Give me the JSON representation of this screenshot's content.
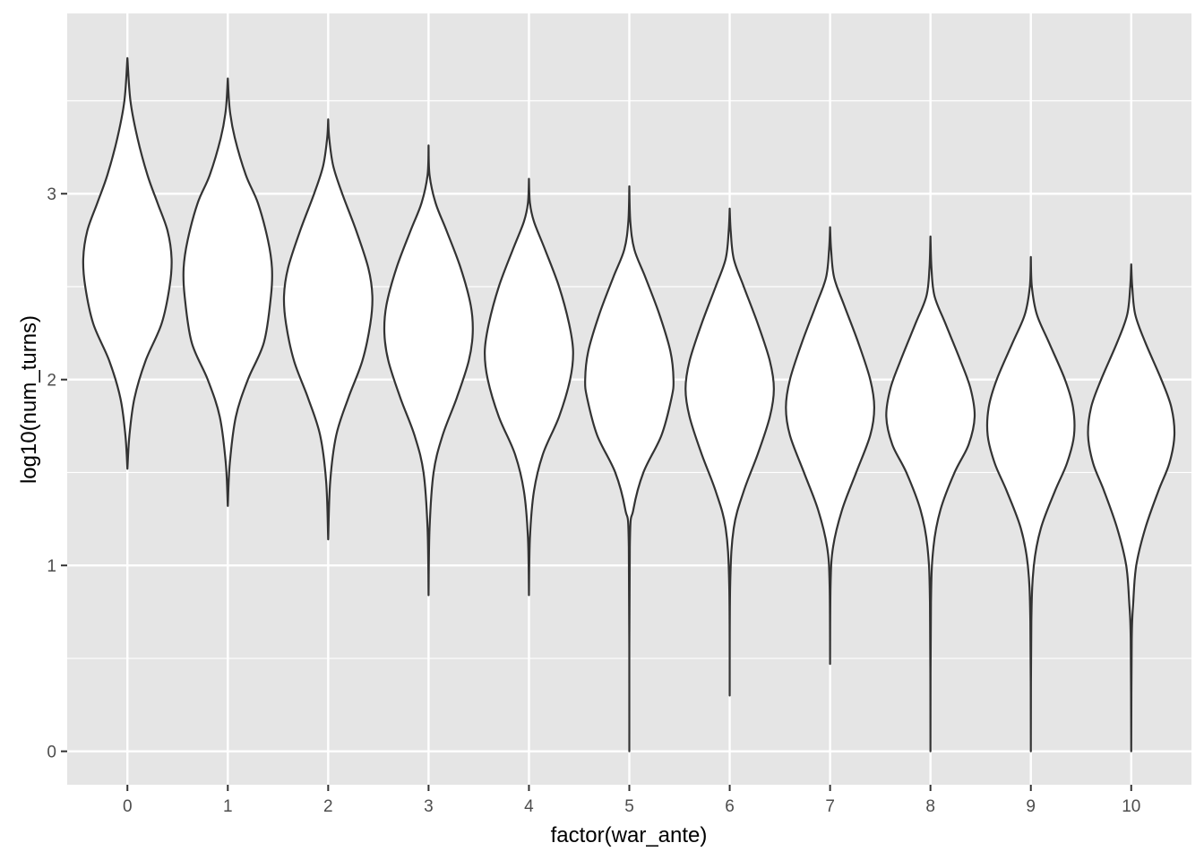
{
  "chart_data": {
    "type": "violin",
    "xlabel": "factor(war_ante)",
    "ylabel": "log10(num_turns)",
    "categories": [
      "0",
      "1",
      "2",
      "3",
      "4",
      "5",
      "6",
      "7",
      "8",
      "9",
      "10"
    ],
    "ylim": [
      -0.18,
      3.97
    ],
    "yticks": [
      0,
      1,
      2,
      3
    ],
    "grid": true,
    "colors": {
      "panel": "#e5e5e5",
      "grid": "#ffffff",
      "outline": "#333333",
      "fill": "#ffffff"
    },
    "violins": [
      {
        "category": "0",
        "min": 1.52,
        "max": 3.73,
        "profile": [
          [
            1.52,
            0.0
          ],
          [
            1.7,
            0.02
          ],
          [
            1.9,
            0.07
          ],
          [
            2.1,
            0.18
          ],
          [
            2.3,
            0.34
          ],
          [
            2.5,
            0.42
          ],
          [
            2.65,
            0.44
          ],
          [
            2.8,
            0.4
          ],
          [
            2.95,
            0.3
          ],
          [
            3.1,
            0.2
          ],
          [
            3.3,
            0.1
          ],
          [
            3.5,
            0.03
          ],
          [
            3.73,
            0.0
          ]
        ]
      },
      {
        "category": "1",
        "min": 1.32,
        "max": 3.62,
        "profile": [
          [
            1.32,
            0.0
          ],
          [
            1.55,
            0.02
          ],
          [
            1.8,
            0.08
          ],
          [
            2.0,
            0.2
          ],
          [
            2.2,
            0.36
          ],
          [
            2.45,
            0.43
          ],
          [
            2.6,
            0.44
          ],
          [
            2.75,
            0.4
          ],
          [
            2.95,
            0.3
          ],
          [
            3.1,
            0.18
          ],
          [
            3.3,
            0.07
          ],
          [
            3.45,
            0.02
          ],
          [
            3.62,
            0.0
          ]
        ]
      },
      {
        "category": "2",
        "min": 1.14,
        "max": 3.4,
        "profile": [
          [
            1.14,
            0.0
          ],
          [
            1.45,
            0.02
          ],
          [
            1.7,
            0.08
          ],
          [
            1.9,
            0.2
          ],
          [
            2.1,
            0.34
          ],
          [
            2.3,
            0.42
          ],
          [
            2.45,
            0.44
          ],
          [
            2.6,
            0.4
          ],
          [
            2.8,
            0.28
          ],
          [
            3.0,
            0.14
          ],
          [
            3.15,
            0.05
          ],
          [
            3.3,
            0.01
          ],
          [
            3.4,
            0.0
          ]
        ]
      },
      {
        "category": "3",
        "min": 0.84,
        "max": 3.26,
        "profile": [
          [
            0.84,
            0.0
          ],
          [
            1.2,
            0.01
          ],
          [
            1.5,
            0.05
          ],
          [
            1.7,
            0.14
          ],
          [
            1.9,
            0.28
          ],
          [
            2.1,
            0.4
          ],
          [
            2.25,
            0.44
          ],
          [
            2.4,
            0.42
          ],
          [
            2.6,
            0.32
          ],
          [
            2.8,
            0.18
          ],
          [
            2.95,
            0.07
          ],
          [
            3.1,
            0.01
          ],
          [
            3.26,
            0.0
          ]
        ]
      },
      {
        "category": "4",
        "min": 0.84,
        "max": 3.08,
        "profile": [
          [
            0.84,
            0.0
          ],
          [
            1.15,
            0.01
          ],
          [
            1.4,
            0.05
          ],
          [
            1.6,
            0.14
          ],
          [
            1.8,
            0.3
          ],
          [
            2.0,
            0.41
          ],
          [
            2.15,
            0.44
          ],
          [
            2.3,
            0.4
          ],
          [
            2.5,
            0.3
          ],
          [
            2.7,
            0.16
          ],
          [
            2.85,
            0.05
          ],
          [
            2.95,
            0.01
          ],
          [
            3.08,
            0.0
          ]
        ]
      },
      {
        "category": "5",
        "min": 0.0,
        "max": 3.04,
        "profile": [
          [
            0.0,
            0.0
          ],
          [
            1.1,
            0.005
          ],
          [
            1.3,
            0.04
          ],
          [
            1.5,
            0.14
          ],
          [
            1.7,
            0.32
          ],
          [
            1.9,
            0.42
          ],
          [
            2.0,
            0.44
          ],
          [
            2.15,
            0.41
          ],
          [
            2.35,
            0.3
          ],
          [
            2.55,
            0.16
          ],
          [
            2.7,
            0.05
          ],
          [
            2.85,
            0.01
          ],
          [
            3.04,
            0.0
          ]
        ]
      },
      {
        "category": "6",
        "min": 0.3,
        "max": 2.92,
        "profile": [
          [
            0.3,
            0.0
          ],
          [
            0.9,
            0.005
          ],
          [
            1.2,
            0.04
          ],
          [
            1.4,
            0.14
          ],
          [
            1.6,
            0.28
          ],
          [
            1.8,
            0.4
          ],
          [
            1.95,
            0.44
          ],
          [
            2.1,
            0.4
          ],
          [
            2.3,
            0.28
          ],
          [
            2.5,
            0.14
          ],
          [
            2.65,
            0.04
          ],
          [
            2.8,
            0.01
          ],
          [
            2.92,
            0.0
          ]
        ]
      },
      {
        "category": "7",
        "min": 0.47,
        "max": 2.82,
        "profile": [
          [
            0.47,
            0.0
          ],
          [
            0.9,
            0.005
          ],
          [
            1.1,
            0.03
          ],
          [
            1.3,
            0.12
          ],
          [
            1.5,
            0.26
          ],
          [
            1.7,
            0.4
          ],
          [
            1.85,
            0.44
          ],
          [
            2.0,
            0.4
          ],
          [
            2.2,
            0.28
          ],
          [
            2.4,
            0.14
          ],
          [
            2.55,
            0.04
          ],
          [
            2.7,
            0.01
          ],
          [
            2.82,
            0.0
          ]
        ]
      },
      {
        "category": "8",
        "min": 0.0,
        "max": 2.77,
        "profile": [
          [
            0.0,
            0.0
          ],
          [
            0.8,
            0.005
          ],
          [
            1.1,
            0.03
          ],
          [
            1.3,
            0.1
          ],
          [
            1.5,
            0.24
          ],
          [
            1.65,
            0.38
          ],
          [
            1.8,
            0.44
          ],
          [
            1.95,
            0.4
          ],
          [
            2.1,
            0.3
          ],
          [
            2.3,
            0.15
          ],
          [
            2.45,
            0.04
          ],
          [
            2.6,
            0.01
          ],
          [
            2.77,
            0.0
          ]
        ]
      },
      {
        "category": "9",
        "min": 0.0,
        "max": 2.66,
        "profile": [
          [
            0.0,
            0.0
          ],
          [
            0.7,
            0.005
          ],
          [
            1.0,
            0.03
          ],
          [
            1.2,
            0.1
          ],
          [
            1.4,
            0.24
          ],
          [
            1.55,
            0.36
          ],
          [
            1.7,
            0.43
          ],
          [
            1.85,
            0.42
          ],
          [
            2.0,
            0.34
          ],
          [
            2.2,
            0.18
          ],
          [
            2.35,
            0.06
          ],
          [
            2.5,
            0.01
          ],
          [
            2.66,
            0.0
          ]
        ]
      },
      {
        "category": "10",
        "min": 0.0,
        "max": 2.62,
        "profile": [
          [
            0.0,
            0.0
          ],
          [
            0.6,
            0.005
          ],
          [
            0.8,
            0.02
          ],
          [
            1.0,
            0.05
          ],
          [
            1.2,
            0.14
          ],
          [
            1.4,
            0.27
          ],
          [
            1.55,
            0.38
          ],
          [
            1.7,
            0.43
          ],
          [
            1.85,
            0.4
          ],
          [
            2.0,
            0.3
          ],
          [
            2.2,
            0.14
          ],
          [
            2.35,
            0.04
          ],
          [
            2.5,
            0.01
          ],
          [
            2.62,
            0.0
          ]
        ]
      }
    ]
  }
}
